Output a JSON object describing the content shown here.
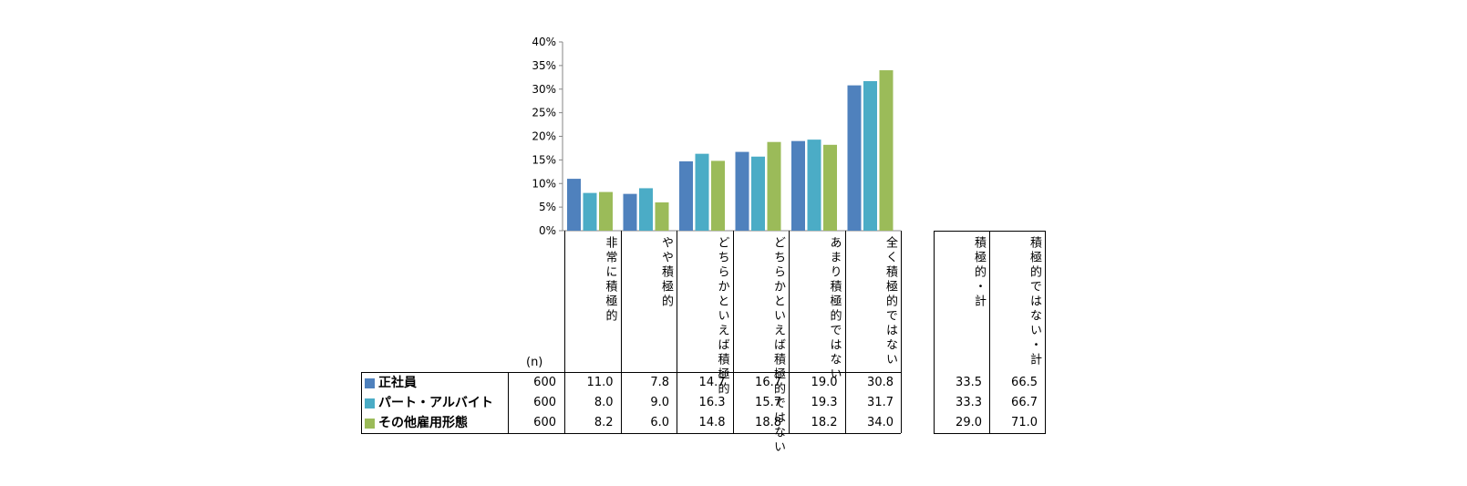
{
  "chart_data": {
    "type": "bar",
    "yticks": [
      "0%",
      "5%",
      "10%",
      "15%",
      "20%",
      "25%",
      "30%",
      "35%",
      "40%"
    ],
    "ylim": [
      0,
      40
    ],
    "categories": [
      "非常に積極的",
      "やや積極的",
      "どちらかといえば積極的",
      "どちらかといえば積極的ではない",
      "あまり積極的ではない",
      "全く積極的ではない"
    ],
    "series": [
      {
        "name": "正社員",
        "color": "#4F81BD",
        "n": "600",
        "values": [
          11.0,
          7.8,
          14.7,
          16.7,
          19.0,
          30.8
        ],
        "labels": [
          "11.0",
          "7.8",
          "14.7",
          "16.7",
          "19.0",
          "30.8"
        ],
        "totals": [
          "33.5",
          "66.5"
        ]
      },
      {
        "name": "パート・アルバイト",
        "color": "#4BACC6",
        "n": "600",
        "values": [
          8.0,
          9.0,
          16.3,
          15.7,
          19.3,
          31.7
        ],
        "labels": [
          "8.0",
          "9.0",
          "16.3",
          "15.7",
          "19.3",
          "31.7"
        ],
        "totals": [
          "33.3",
          "66.7"
        ]
      },
      {
        "name": "その他雇用形態",
        "color": "#9BBB59",
        "n": "600",
        "values": [
          8.2,
          6.0,
          14.8,
          18.8,
          18.2,
          34.0
        ],
        "labels": [
          "8.2",
          "6.0",
          "14.8",
          "18.8",
          "18.2",
          "34.0"
        ],
        "totals": [
          "29.0",
          "71.0"
        ]
      }
    ],
    "total_headers": [
      "積極的・計",
      "積極的ではない・計"
    ],
    "n_label": "(n)"
  }
}
